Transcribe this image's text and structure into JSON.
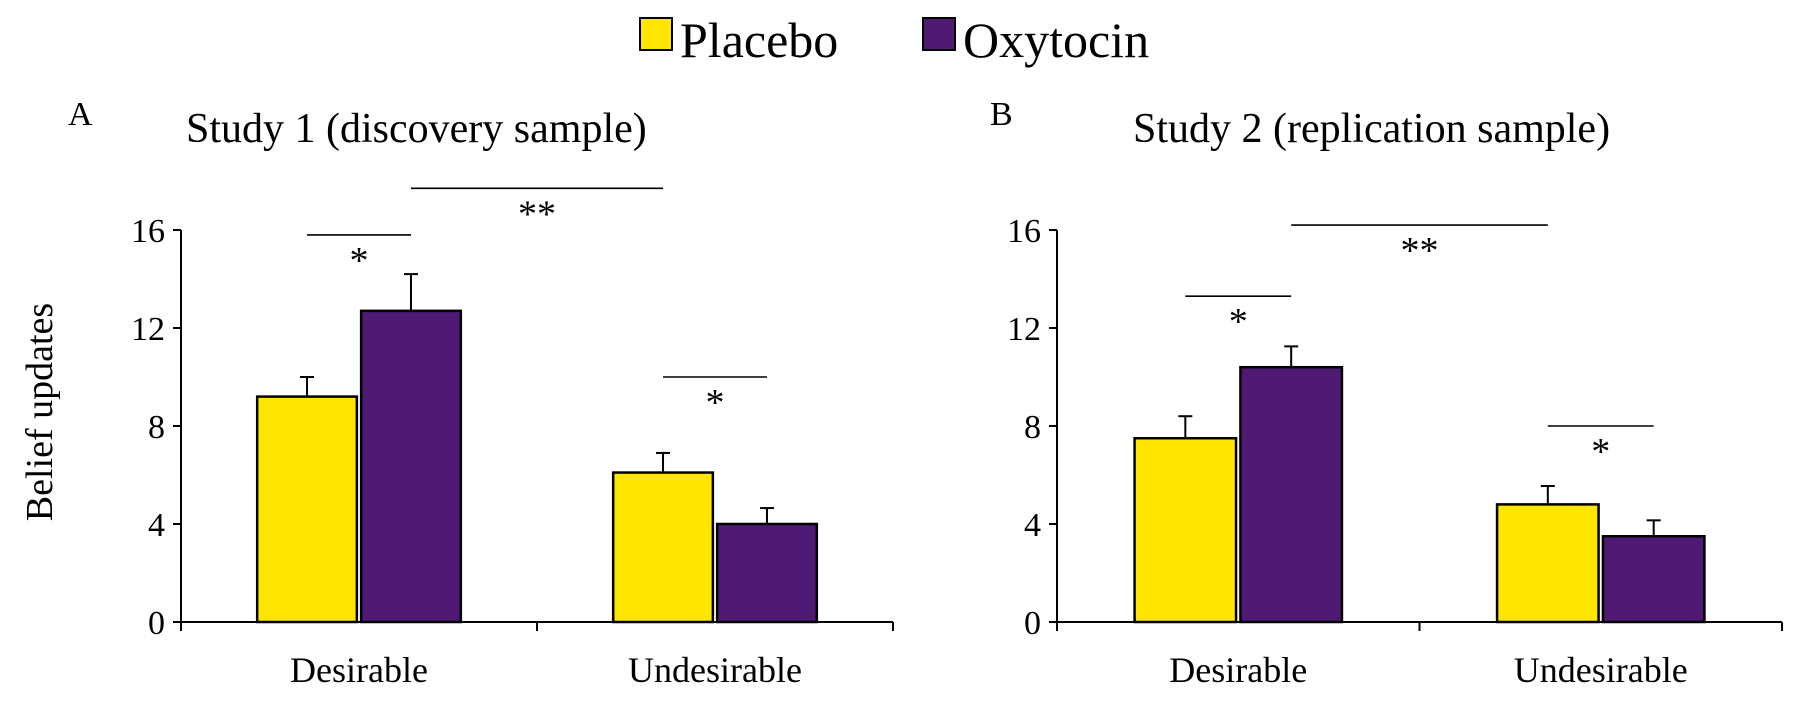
{
  "legend": {
    "items": [
      {
        "label": "Placebo",
        "color": "#ffe600"
      },
      {
        "label": "Oxytocin",
        "color": "#4e1a74"
      }
    ]
  },
  "axis_title": "Belief updates",
  "chart_data": [
    {
      "type": "bar",
      "letter": "A",
      "title": "Study 1 (discovery sample)",
      "ylabel": "Belief updates",
      "categories": [
        "Desirable",
        "Undesirable"
      ],
      "yticks": [
        "0",
        "4",
        "8",
        "12",
        "16"
      ],
      "ylim": [
        0,
        16
      ],
      "grid": false,
      "legend_position": "top",
      "series": [
        {
          "name": "Placebo",
          "color": "#ffe600",
          "values": [
            9.2,
            6.1
          ],
          "errors": [
            0.8,
            0.8
          ]
        },
        {
          "name": "Oxytocin",
          "color": "#4e1a74",
          "values": [
            12.7,
            4.0
          ],
          "errors": [
            1.5,
            0.65
          ]
        }
      ],
      "annotations": [
        {
          "label": "*",
          "type": "within",
          "category": 0,
          "level": 15.8
        },
        {
          "label": "*",
          "type": "within",
          "category": 1,
          "level": 10.0
        },
        {
          "label": "**",
          "type": "between",
          "level": 17.7
        }
      ]
    },
    {
      "type": "bar",
      "letter": "B",
      "title": "Study 2 (replication sample)",
      "ylabel": "",
      "categories": [
        "Desirable",
        "Undesirable"
      ],
      "yticks": [
        "0",
        "4",
        "8",
        "12",
        "16"
      ],
      "ylim": [
        0,
        16
      ],
      "grid": false,
      "legend_position": "top",
      "series": [
        {
          "name": "Placebo",
          "color": "#ffe600",
          "values": [
            7.5,
            4.8
          ],
          "errors": [
            0.9,
            0.75
          ]
        },
        {
          "name": "Oxytocin",
          "color": "#4e1a74",
          "values": [
            10.4,
            3.5
          ],
          "errors": [
            0.85,
            0.65
          ]
        }
      ],
      "annotations": [
        {
          "label": "*",
          "type": "within",
          "category": 0,
          "level": 13.3
        },
        {
          "label": "*",
          "type": "within",
          "category": 1,
          "level": 8.0
        },
        {
          "label": "**",
          "type": "between",
          "level": 16.2
        }
      ]
    }
  ]
}
